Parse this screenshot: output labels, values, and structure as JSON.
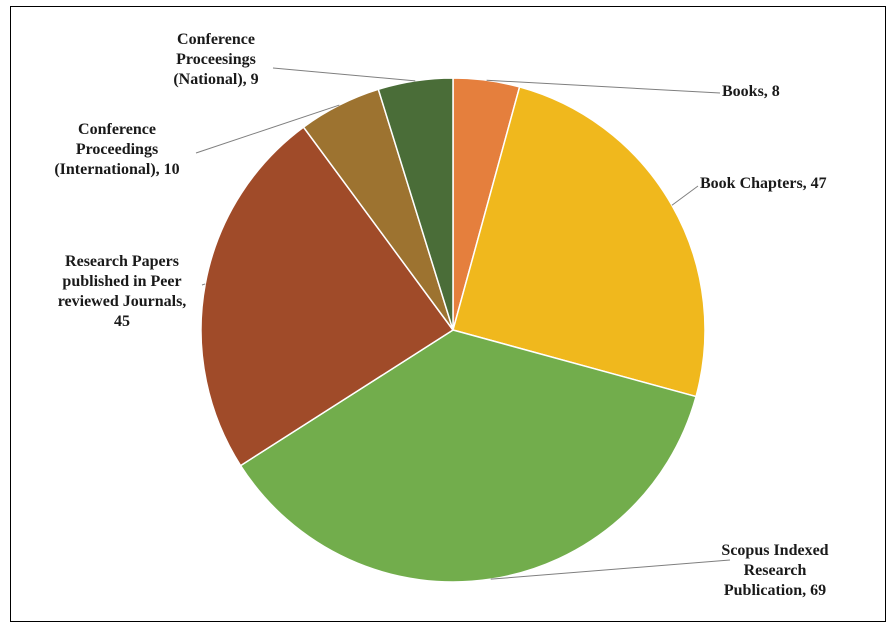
{
  "chart_data": {
    "type": "pie",
    "title": "",
    "start_angle_deg": 90,
    "direction": "clockwise",
    "slices": [
      {
        "label": "Books",
        "value": 8,
        "label_text": [
          "Books, 8"
        ],
        "color": "#E57F3D"
      },
      {
        "label": "Book Chapters",
        "value": 47,
        "label_text": [
          "Book Chapters, 47"
        ],
        "color": "#F0B81D"
      },
      {
        "label": "Scopus Indexed Research Publication",
        "value": 69,
        "label_text": [
          "Scopus Indexed",
          "Research",
          "Publication, 69"
        ],
        "color": "#72AD4C"
      },
      {
        "label": "Research Papers published in Peer reviewed Journals",
        "value": 45,
        "label_text": [
          "Research Papers",
          "published in Peer",
          "reviewed Journals,",
          "45"
        ],
        "color": "#A04B29"
      },
      {
        "label": "Conference Proceedings (International)",
        "value": 10,
        "label_text": [
          "Conference",
          "Proceedings",
          "(International), 10"
        ],
        "color": "#9D7330"
      },
      {
        "label": "Conference Proceesings (National)",
        "value": 9,
        "label_text": [
          "Conference",
          "Proceesings",
          "(National), 9"
        ],
        "color": "#4A6D38"
      }
    ],
    "legend": "none",
    "data_labels": "outside with leader lines"
  }
}
